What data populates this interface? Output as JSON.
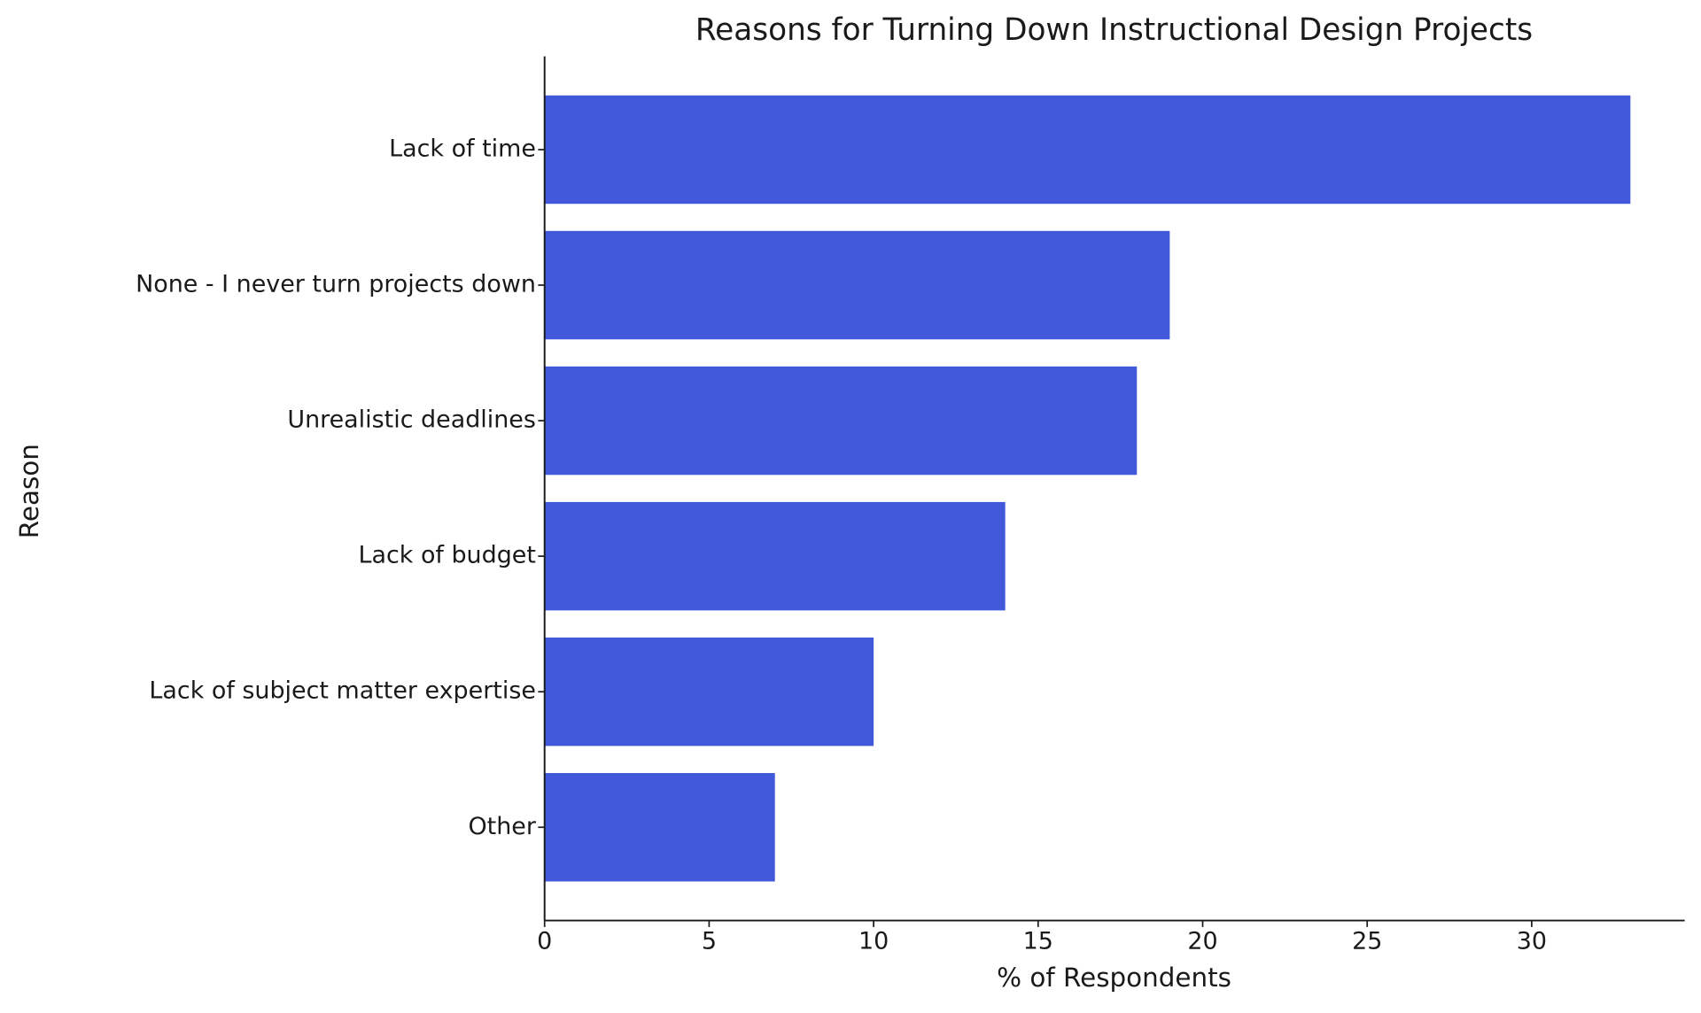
{
  "chart_data": {
    "type": "barh",
    "title": "Reasons for Turning Down Instructional Design Projects",
    "x_label": "% of Respondents",
    "y_label": "Reason",
    "categories": [
      "Lack of time",
      "None - I never turn projects down",
      "Unrealistic deadlines",
      "Lack of budget",
      "Lack of subject matter expertise",
      "Other"
    ],
    "values": [
      33,
      19,
      18,
      14,
      10,
      7
    ],
    "color": "#4058d9",
    "xlim": [
      0,
      34.65
    ],
    "xticks": [
      0,
      5,
      10,
      15,
      20,
      25,
      30
    ],
    "grid": false
  }
}
